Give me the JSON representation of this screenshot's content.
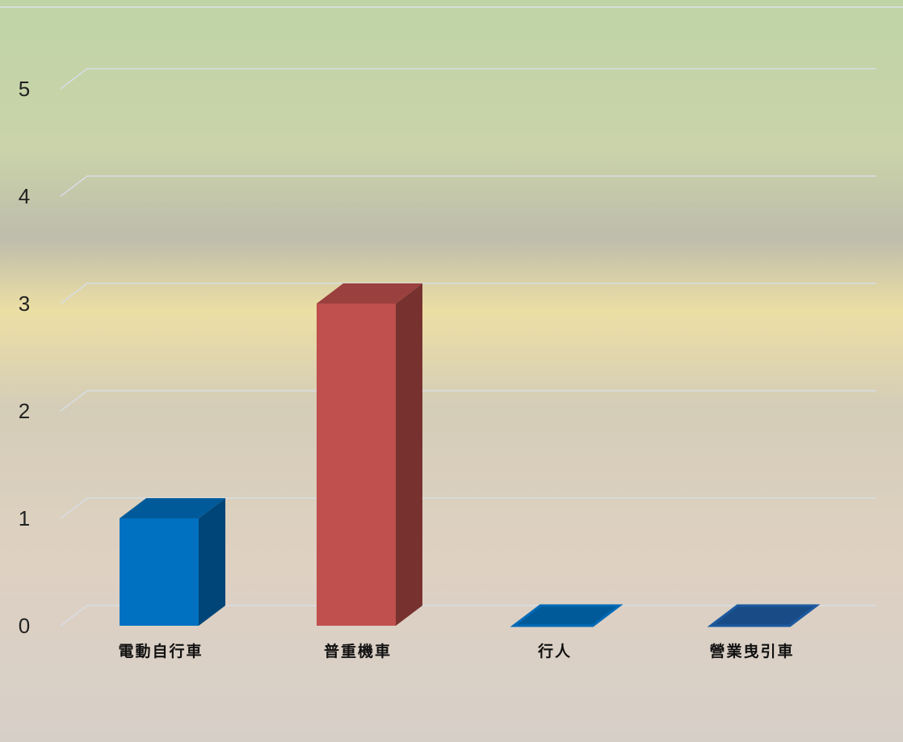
{
  "chart_data": {
    "type": "bar3d",
    "categories": [
      "電動自行車",
      "普重機車",
      "行人",
      "營業曳引車"
    ],
    "values": [
      1,
      3,
      0,
      0
    ],
    "colors": [
      "#0070c0",
      "#c0504d",
      "#0070c0",
      "#1f5fa8"
    ],
    "ylim": [
      0,
      5
    ],
    "yticks": [
      0,
      1,
      2,
      3,
      4,
      5
    ],
    "grid": true
  }
}
